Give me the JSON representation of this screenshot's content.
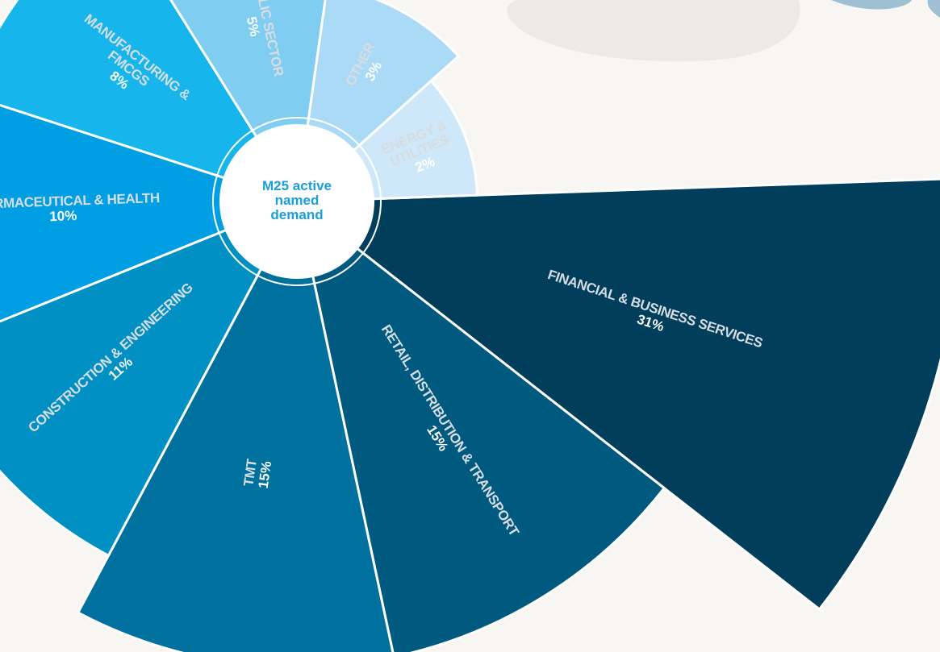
{
  "chart_data": {
    "type": "polar",
    "center_label": "M25 active named demand",
    "annotations": [
      "account"
    ],
    "categories": [
      "FINANCIAL & BUSINESS SERVICES",
      "RETAIL, DISTRIBUTION & TRANSPORT",
      "TMT",
      "CONSTRUCTION & ENGINEERING",
      "PHARMACEUTICAL & HEALTH",
      "MANUFACTURING & FMCGS",
      "PUBLIC SECTOR",
      "OTHER",
      "ENERGY & UTILITIES"
    ],
    "values": [
      31,
      15,
      15,
      11,
      10,
      8,
      5,
      3,
      2
    ],
    "value_labels": [
      "31%",
      "15%",
      "15%",
      "11%",
      "10%",
      "8%",
      "5%",
      "3%",
      "2%"
    ],
    "colors": [
      "#003e5c",
      "#005a80",
      "#00719f",
      "#0090c4",
      "#009fe3",
      "#16b6ec",
      "#7fcdf1",
      "#aadaf6",
      "#cfe8f9"
    ]
  }
}
